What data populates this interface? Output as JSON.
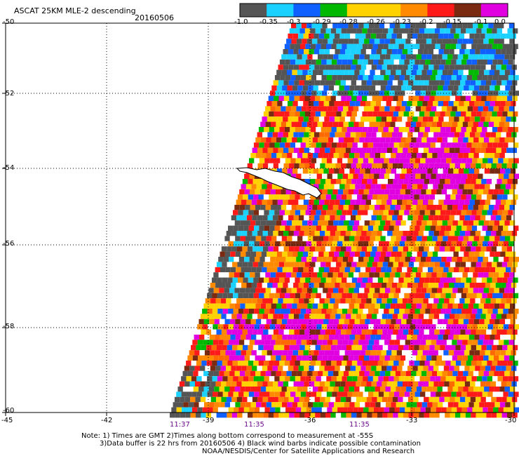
{
  "header": {
    "title": "ASCAT 25KM MLE-2 descending",
    "date": "20160506"
  },
  "colorbar": {
    "labels": [
      "-1.0",
      "-0.35",
      "-0.3",
      "-0.29",
      "-0.28",
      "-0.26",
      "-0.23",
      "-0.2",
      "-0.15",
      "-0.1",
      "0.0"
    ],
    "colors": [
      "#555555",
      "#1ad1ff",
      "#1060ff",
      "#00b800",
      "#ffd200",
      "#ffd200",
      "#ff8a00",
      "#ff1a1a",
      "#7a2a10",
      "#e000e0",
      "#8000c0"
    ]
  },
  "map": {
    "lat_labels": [
      "-50",
      "-52",
      "-54",
      "-56",
      "-58",
      "-60"
    ],
    "lon_labels": [
      "-45",
      "-42",
      "-39",
      "-36",
      "-33",
      "-30"
    ],
    "pass_times": [
      "11:37",
      "11:35",
      "11:35"
    ]
  },
  "notes": {
    "line1": "Note: 1) Times are GMT 2)Times along bottom correspond to measurement at -55S",
    "line2": "3)Data buffer is 22 hrs from 20160506 4) Black wind barbs indicate possible contamination",
    "line3": "NOAA/NESDIS/Center for Satellite Applications and Research"
  }
}
